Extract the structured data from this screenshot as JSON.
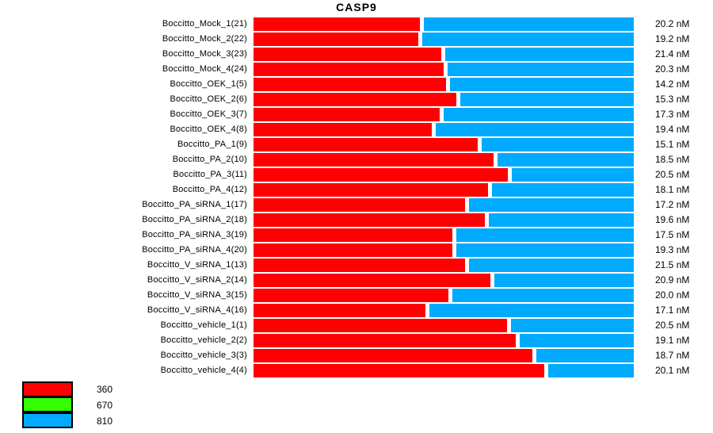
{
  "page": {
    "background": "#FFFFFF"
  },
  "title": "CASP9",
  "value_unit": "nM",
  "colors": {
    "ch360": "#FF0000",
    "ch670": "#33FF00",
    "ch810": "#00AAFF",
    "text": "#000000",
    "legend_border": "#000000"
  },
  "legend": {
    "items": [
      {
        "label": "360",
        "color": "#FF0000"
      },
      {
        "label": "670",
        "color": "#33FF00"
      },
      {
        "label": "810",
        "color": "#00AAFF"
      }
    ]
  },
  "chart_data": {
    "type": "bar",
    "orientation": "horizontal",
    "stacked": true,
    "title": "CASP9",
    "value_unit": "nM",
    "legend_entries": [
      "360",
      "670",
      "810"
    ],
    "legend_position": "bottom-left",
    "grid": false,
    "bar_total_normalized": 1.0,
    "rows": [
      {
        "label": "Boccitto_Mock_1(21)",
        "value_nM": 20.2,
        "value_label": "20.2 nM",
        "fraction_360": 0.438,
        "fraction_810": 0.562
      },
      {
        "label": "Boccitto_Mock_2(22)",
        "value_nM": 19.2,
        "value_label": "19.2 nM",
        "fraction_360": 0.433,
        "fraction_810": 0.567
      },
      {
        "label": "Boccitto_Mock_3(23)",
        "value_nM": 21.4,
        "value_label": "21.4 nM",
        "fraction_360": 0.494,
        "fraction_810": 0.506
      },
      {
        "label": "Boccitto_Mock_4(24)",
        "value_nM": 20.3,
        "value_label": "20.3 nM",
        "fraction_360": 0.5,
        "fraction_810": 0.5
      },
      {
        "label": "Boccitto_OEK_1(5)",
        "value_nM": 14.2,
        "value_label": "14.2 nM",
        "fraction_360": 0.506,
        "fraction_810": 0.494
      },
      {
        "label": "Boccitto_OEK_2(6)",
        "value_nM": 15.3,
        "value_label": "15.3 nM",
        "fraction_360": 0.533,
        "fraction_810": 0.467
      },
      {
        "label": "Boccitto_OEK_3(7)",
        "value_nM": 17.3,
        "value_label": "17.3 nM",
        "fraction_360": 0.49,
        "fraction_810": 0.51
      },
      {
        "label": "Boccitto_OEK_4(8)",
        "value_nM": 19.4,
        "value_label": "19.4 nM",
        "fraction_360": 0.469,
        "fraction_810": 0.531
      },
      {
        "label": "Boccitto_PA_1(9)",
        "value_nM": 15.1,
        "value_label": "15.1 nM",
        "fraction_360": 0.59,
        "fraction_810": 0.41
      },
      {
        "label": "Boccitto_PA_2(10)",
        "value_nM": 18.5,
        "value_label": "18.5 nM",
        "fraction_360": 0.631,
        "fraction_810": 0.369
      },
      {
        "label": "Boccitto_PA_3(11)",
        "value_nM": 20.5,
        "value_label": "20.5 nM",
        "fraction_360": 0.669,
        "fraction_810": 0.331
      },
      {
        "label": "Boccitto_PA_4(12)",
        "value_nM": 18.1,
        "value_label": "18.1 nM",
        "fraction_360": 0.617,
        "fraction_810": 0.383
      },
      {
        "label": "Boccitto_PA_siRNA_1(17)",
        "value_nM": 17.2,
        "value_label": "17.2 nM",
        "fraction_360": 0.556,
        "fraction_810": 0.444
      },
      {
        "label": "Boccitto_PA_siRNA_2(18)",
        "value_nM": 19.6,
        "value_label": "19.6 nM",
        "fraction_360": 0.608,
        "fraction_810": 0.392
      },
      {
        "label": "Boccitto_PA_siRNA_3(19)",
        "value_nM": 17.5,
        "value_label": "17.5 nM",
        "fraction_360": 0.523,
        "fraction_810": 0.477
      },
      {
        "label": "Boccitto_PA_siRNA_4(20)",
        "value_nM": 19.3,
        "value_label": "19.3 nM",
        "fraction_360": 0.523,
        "fraction_810": 0.477
      },
      {
        "label": "Boccitto_V_siRNA_1(13)",
        "value_nM": 21.5,
        "value_label": "21.5 nM",
        "fraction_360": 0.556,
        "fraction_810": 0.444
      },
      {
        "label": "Boccitto_V_siRNA_2(14)",
        "value_nM": 20.9,
        "value_label": "20.9 nM",
        "fraction_360": 0.623,
        "fraction_810": 0.377
      },
      {
        "label": "Boccitto_V_siRNA_3(15)",
        "value_nM": 20.0,
        "value_label": "20.0 nM",
        "fraction_360": 0.513,
        "fraction_810": 0.487
      },
      {
        "label": "Boccitto_V_siRNA_4(16)",
        "value_nM": 17.1,
        "value_label": "17.1 nM",
        "fraction_360": 0.452,
        "fraction_810": 0.548
      },
      {
        "label": "Boccitto_vehicle_1(1)",
        "value_nM": 20.5,
        "value_label": "20.5 nM",
        "fraction_360": 0.667,
        "fraction_810": 0.333
      },
      {
        "label": "Boccitto_vehicle_2(2)",
        "value_nM": 19.1,
        "value_label": "19.1 nM",
        "fraction_360": 0.69,
        "fraction_810": 0.31
      },
      {
        "label": "Boccitto_vehicle_3(3)",
        "value_nM": 18.7,
        "value_label": "18.7 nM",
        "fraction_360": 0.733,
        "fraction_810": 0.267
      },
      {
        "label": "Boccitto_vehicle_4(4)",
        "value_nM": 20.1,
        "value_label": "20.1 nM",
        "fraction_360": 0.765,
        "fraction_810": 0.235
      }
    ]
  }
}
